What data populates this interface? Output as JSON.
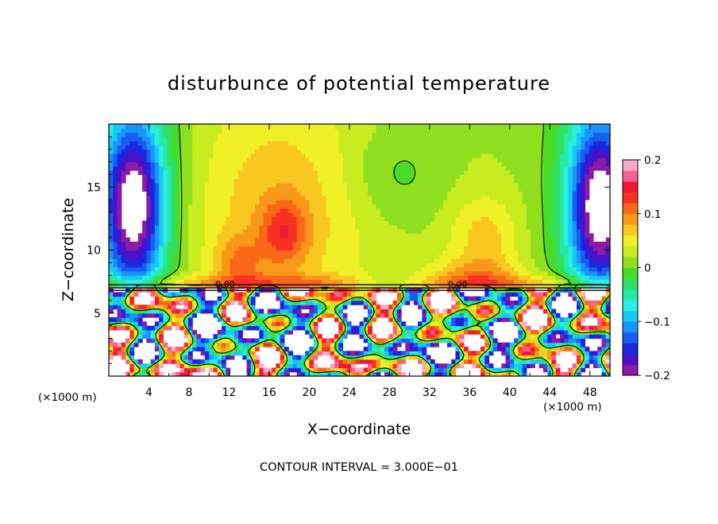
{
  "chart_data": {
    "type": "heatmap",
    "title": "disturbunce of potential temperature",
    "xlabel": "X−coordinate",
    "ylabel": "Z−coordinate",
    "x_unit": "(×1000 m)",
    "y_unit": "(×1000 m)",
    "xlim": [
      0,
      50
    ],
    "ylim": [
      0,
      20
    ],
    "x_ticks": [
      4,
      8,
      12,
      16,
      20,
      24,
      28,
      32,
      36,
      40,
      44,
      48
    ],
    "x_tick_labels": [
      "4",
      "8",
      "12",
      "16",
      "20",
      "24",
      "28",
      "32",
      "36",
      "40",
      "44",
      "48"
    ],
    "y_ticks": [
      5,
      10,
      15
    ],
    "y_tick_labels": [
      "5",
      "10",
      "15"
    ],
    "colorbar": {
      "range": [
        -0.2,
        0.2
      ],
      "ticks": [
        0.2,
        0.1,
        0,
        -0.1,
        -0.2
      ],
      "tick_labels": [
        "0.2",
        "0.1",
        "0",
        "−0.1",
        "−0.2"
      ],
      "colors": [
        "#8c1aa8",
        "#4a12c8",
        "#1828e0",
        "#1a5cf0",
        "#1a94f8",
        "#18c8f8",
        "#28f0e0",
        "#28e8a8",
        "#30e060",
        "#48dc28",
        "#90e020",
        "#c8ec20",
        "#f0f028",
        "#f8c820",
        "#f89818",
        "#f86818",
        "#f83020",
        "#f01838",
        "#f86090",
        "#f8a8c8"
      ]
    },
    "contour_labels": [
      "0.00",
      "0.00"
    ],
    "contour_interval": "CONTOUR INTERVAL = 3.000E−01"
  }
}
